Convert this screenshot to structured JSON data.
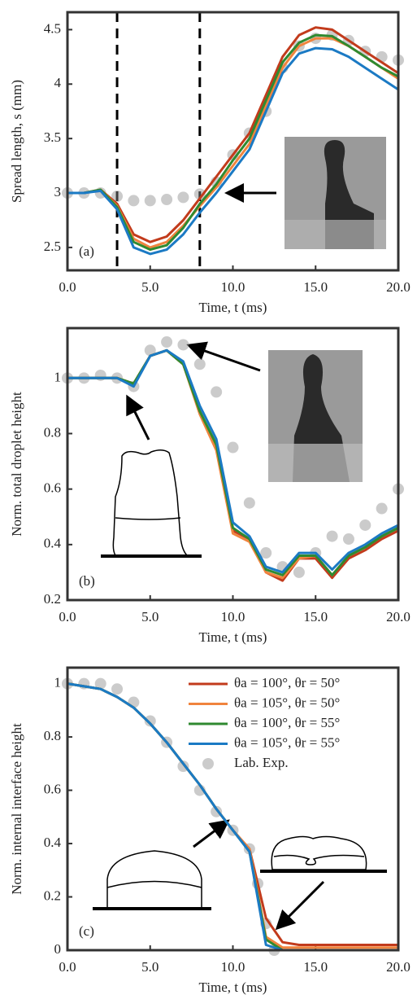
{
  "chart_data": [
    {
      "type": "line",
      "panel_label": "(a)",
      "xlabel": "Time, t (ms)",
      "ylabel": "Spread length, s (mm)",
      "x": [
        0,
        1,
        2,
        3,
        4,
        5,
        6,
        7,
        8,
        9,
        10,
        11,
        12,
        13,
        14,
        15,
        16,
        17,
        18,
        19,
        20
      ],
      "xlim": [
        0,
        20
      ],
      "xticks": [
        {
          "value": 0,
          "label": "0.0"
        },
        {
          "value": 5,
          "label": "5.0"
        },
        {
          "value": 10,
          "label": "10.0"
        },
        {
          "value": 15,
          "label": "15.0"
        },
        {
          "value": 20,
          "label": "20.0"
        }
      ],
      "ylim": [
        2.29,
        4.66
      ],
      "yticks": [
        2.5,
        3,
        3.5,
        4,
        4.5
      ],
      "vlines": [
        3,
        8
      ],
      "series": [
        {
          "color": "#c23b1c",
          "values": [
            3.0,
            3.0,
            3.03,
            2.9,
            2.62,
            2.55,
            2.6,
            2.75,
            2.95,
            3.15,
            3.35,
            3.55,
            3.9,
            4.25,
            4.45,
            4.52,
            4.5,
            4.4,
            4.3,
            4.2,
            4.1
          ]
        },
        {
          "color": "#f0843e",
          "values": [
            3.0,
            3.0,
            3.03,
            2.88,
            2.58,
            2.5,
            2.55,
            2.7,
            2.88,
            3.05,
            3.25,
            3.45,
            3.8,
            4.15,
            4.35,
            4.42,
            4.42,
            4.35,
            4.25,
            4.15,
            4.05
          ]
        },
        {
          "color": "#2f8a30",
          "values": [
            3.0,
            3.0,
            3.03,
            2.87,
            2.55,
            2.48,
            2.52,
            2.68,
            2.9,
            3.08,
            3.3,
            3.5,
            3.85,
            4.2,
            4.38,
            4.45,
            4.44,
            4.35,
            4.25,
            4.15,
            4.07
          ]
        },
        {
          "color": "#1b7ac4",
          "values": [
            3.0,
            3.0,
            3.02,
            2.85,
            2.5,
            2.44,
            2.48,
            2.62,
            2.82,
            3.0,
            3.2,
            3.4,
            3.75,
            4.1,
            4.28,
            4.33,
            4.32,
            4.25,
            4.15,
            4.05,
            3.95
          ]
        },
        {
          "color": "#8c8c8c",
          "marker": true,
          "values": [
            3.0,
            3.0,
            3.0,
            2.97,
            2.93,
            2.93,
            2.94,
            2.96,
            2.99,
            3.1,
            3.35,
            3.55,
            3.75,
            4.15,
            4.35,
            4.42,
            4.45,
            4.4,
            4.3,
            4.25,
            4.22
          ]
        }
      ]
    },
    {
      "type": "line",
      "panel_label": "(b)",
      "xlabel": "Time, t (ms)",
      "ylabel": "Norm. total droplet height",
      "x": [
        0,
        1,
        2,
        3,
        4,
        5,
        6,
        7,
        8,
        9,
        10,
        11,
        12,
        13,
        14,
        15,
        16,
        17,
        18,
        19,
        20
      ],
      "xlim": [
        0,
        20
      ],
      "xticks": [
        {
          "value": 0,
          "label": "0.0"
        },
        {
          "value": 5,
          "label": "5.0"
        },
        {
          "value": 10,
          "label": "10.0"
        },
        {
          "value": 15,
          "label": "15.0"
        },
        {
          "value": 20,
          "label": "20.0"
        }
      ],
      "ylim": [
        0.2,
        1.18
      ],
      "yticks": [
        0.2,
        0.4,
        0.6,
        0.8,
        1
      ],
      "series": [
        {
          "color": "#c23b1c",
          "values": [
            1.0,
            1.0,
            1.0,
            1.0,
            0.98,
            1.08,
            1.1,
            1.05,
            0.88,
            0.75,
            0.45,
            0.42,
            0.3,
            0.27,
            0.35,
            0.35,
            0.28,
            0.35,
            0.38,
            0.42,
            0.45
          ]
        },
        {
          "color": "#f0843e",
          "values": [
            1.0,
            1.0,
            1.0,
            1.0,
            0.98,
            1.08,
            1.1,
            1.05,
            0.87,
            0.74,
            0.44,
            0.41,
            0.3,
            0.28,
            0.35,
            0.36,
            0.29,
            0.36,
            0.39,
            0.43,
            0.46
          ]
        },
        {
          "color": "#2f8a30",
          "values": [
            1.0,
            1.0,
            1.0,
            1.0,
            0.98,
            1.08,
            1.1,
            1.05,
            0.88,
            0.76,
            0.46,
            0.42,
            0.31,
            0.29,
            0.36,
            0.36,
            0.29,
            0.36,
            0.39,
            0.43,
            0.46
          ]
        },
        {
          "color": "#1b7ac4",
          "values": [
            1.0,
            1.0,
            1.0,
            1.0,
            0.97,
            1.08,
            1.1,
            1.06,
            0.9,
            0.78,
            0.48,
            0.43,
            0.32,
            0.3,
            0.37,
            0.37,
            0.31,
            0.37,
            0.4,
            0.44,
            0.47
          ]
        },
        {
          "color": "#8c8c8c",
          "marker": true,
          "values": [
            1.0,
            1.0,
            1.01,
            1.0,
            0.97,
            1.1,
            1.13,
            1.12,
            1.05,
            0.95,
            0.75,
            0.55,
            0.37,
            0.32,
            0.3,
            0.37,
            0.43,
            0.42,
            0.47,
            0.53,
            0.6
          ]
        }
      ]
    },
    {
      "type": "line",
      "panel_label": "(c)",
      "xlabel": "Time, t (ms)",
      "ylabel": "Norm. internal interface height",
      "x": [
        0,
        1,
        2,
        3,
        4,
        5,
        6,
        7,
        8,
        9,
        10,
        11,
        12,
        13,
        14,
        15,
        16,
        17,
        18,
        19,
        20
      ],
      "xlim": [
        0,
        20
      ],
      "xticks": [
        {
          "value": 0,
          "label": "0.0"
        },
        {
          "value": 5,
          "label": "5.0"
        },
        {
          "value": 10,
          "label": "10.0"
        },
        {
          "value": 15,
          "label": "15.0"
        },
        {
          "value": 20,
          "label": "20.0"
        }
      ],
      "ylim": [
        0,
        1.06
      ],
      "yticks": [
        0,
        0.2,
        0.4,
        0.6,
        0.8,
        1
      ],
      "legend": "northeast",
      "series": [
        {
          "name": "θa = 100°, θr = 50°",
          "color": "#c23b1c",
          "values": [
            1.0,
            0.99,
            0.98,
            0.95,
            0.91,
            0.85,
            0.78,
            0.7,
            0.62,
            0.53,
            0.45,
            0.38,
            0.12,
            0.03,
            0.02,
            0.02,
            0.02,
            0.02,
            0.02,
            0.02,
            0.02
          ]
        },
        {
          "name": "θa = 105°, θr = 50°",
          "color": "#f0843e",
          "values": [
            1.0,
            0.99,
            0.98,
            0.95,
            0.91,
            0.85,
            0.78,
            0.7,
            0.62,
            0.53,
            0.45,
            0.38,
            0.05,
            0.01,
            0.01,
            0.01,
            0.01,
            0.01,
            0.01,
            0.01,
            0.01
          ]
        },
        {
          "name": "θa = 100°, θr = 55°",
          "color": "#2f8a30",
          "values": [
            1.0,
            0.99,
            0.98,
            0.95,
            0.91,
            0.85,
            0.78,
            0.7,
            0.62,
            0.53,
            0.45,
            0.37,
            0.04,
            0,
            0,
            0,
            0,
            0,
            0,
            0,
            0
          ]
        },
        {
          "name": "θa = 105°, θr = 55°",
          "color": "#1b7ac4",
          "values": [
            1.0,
            0.99,
            0.98,
            0.95,
            0.91,
            0.85,
            0.78,
            0.7,
            0.62,
            0.53,
            0.45,
            0.37,
            0.02,
            0,
            0,
            0,
            0,
            0,
            0,
            0,
            0
          ]
        },
        {
          "name": "Lab. Exp.",
          "color": "#8c8c8c",
          "marker": true,
          "x": [
            0,
            1,
            2,
            3,
            4,
            5,
            6,
            7,
            8,
            9,
            10,
            11,
            11.5,
            12,
            12.5
          ],
          "values": [
            1.0,
            1.0,
            1.0,
            0.98,
            0.93,
            0.86,
            0.78,
            0.69,
            0.6,
            0.52,
            0.45,
            0.38,
            0.25,
            0.1,
            0.0
          ]
        }
      ]
    }
  ]
}
